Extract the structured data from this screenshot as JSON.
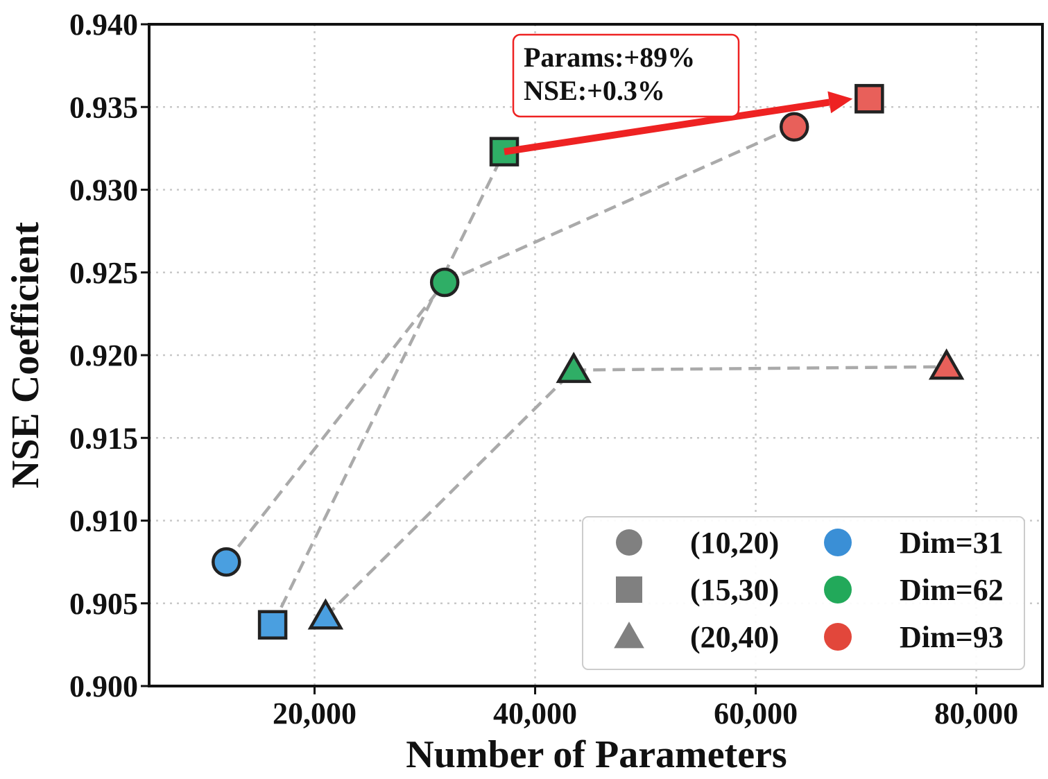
{
  "chart_data": {
    "type": "scatter",
    "xlabel": "Number of Parameters",
    "ylabel": "NSE Coefficient",
    "xlim": [
      5000,
      86000
    ],
    "ylim": [
      0.9,
      0.94
    ],
    "xticks": [
      20000,
      40000,
      60000,
      80000
    ],
    "xtick_labels": [
      "20,000",
      "40,000",
      "60,000",
      "80,000"
    ],
    "yticks": [
      0.9,
      0.905,
      0.91,
      0.915,
      0.92,
      0.925,
      0.93,
      0.935,
      0.94
    ],
    "ytick_labels": [
      "0.900",
      "0.905",
      "0.910",
      "0.915",
      "0.920",
      "0.925",
      "0.930",
      "0.935",
      "0.940"
    ],
    "grid": true,
    "points": [
      {
        "id": "p-10-20-dim31",
        "x": 12000,
        "y": 0.9075,
        "shape": "circle",
        "window": "(10,20)",
        "dim": "Dim=31"
      },
      {
        "id": "p-15-30-dim31",
        "x": 16200,
        "y": 0.9037,
        "shape": "square",
        "window": "(15,30)",
        "dim": "Dim=31"
      },
      {
        "id": "p-20-40-dim31",
        "x": 21000,
        "y": 0.9042,
        "shape": "triangle",
        "window": "(20,40)",
        "dim": "Dim=31"
      },
      {
        "id": "p-10-20-dim62",
        "x": 31800,
        "y": 0.9244,
        "shape": "circle",
        "window": "(10,20)",
        "dim": "Dim=62"
      },
      {
        "id": "p-15-30-dim62",
        "x": 37200,
        "y": 0.9323,
        "shape": "square",
        "window": "(15,30)",
        "dim": "Dim=62"
      },
      {
        "id": "p-20-40-dim62",
        "x": 43500,
        "y": 0.9191,
        "shape": "triangle",
        "window": "(20,40)",
        "dim": "Dim=62"
      },
      {
        "id": "p-10-20-dim93",
        "x": 63500,
        "y": 0.9338,
        "shape": "circle",
        "window": "(10,20)",
        "dim": "Dim=93"
      },
      {
        "id": "p-15-30-dim93",
        "x": 70300,
        "y": 0.9355,
        "shape": "square",
        "window": "(15,30)",
        "dim": "Dim=93"
      },
      {
        "id": "p-20-40-dim93",
        "x": 77300,
        "y": 0.9193,
        "shape": "triangle",
        "window": "(20,40)",
        "dim": "Dim=93"
      }
    ],
    "connectors": [
      [
        "p-10-20-dim31",
        "p-10-20-dim62"
      ],
      [
        "p-10-20-dim62",
        "p-10-20-dim93"
      ],
      [
        "p-15-30-dim31",
        "p-15-30-dim62"
      ],
      [
        "p-20-40-dim31",
        "p-20-40-dim62"
      ],
      [
        "p-20-40-dim62",
        "p-20-40-dim93"
      ]
    ],
    "dim_colors": {
      "Dim=31": "#4a9fe0",
      "Dim=62": "#2fae66",
      "Dim=93": "#e8605a"
    },
    "connector_color": "#aaaaaa",
    "arrow": {
      "from": "p-15-30-dim62",
      "to": "p-15-30-dim93",
      "color": "#ee2222"
    },
    "annotation": {
      "line1": "Params:+89%",
      "line2": "NSE:+0.3%",
      "border_color": "#ee2222"
    },
    "legend": {
      "position": "bottom-right",
      "shapes": [
        {
          "shape": "circle",
          "label": "(10,20)"
        },
        {
          "shape": "square",
          "label": "(15,30)"
        },
        {
          "shape": "triangle",
          "label": "(20,40)"
        }
      ],
      "colors": [
        {
          "label": "Dim=31",
          "color": "#3a8fd6"
        },
        {
          "label": "Dim=62",
          "color": "#22a95a"
        },
        {
          "label": "Dim=93",
          "color": "#e2473b"
        }
      ],
      "shape_color": "#808080"
    }
  }
}
